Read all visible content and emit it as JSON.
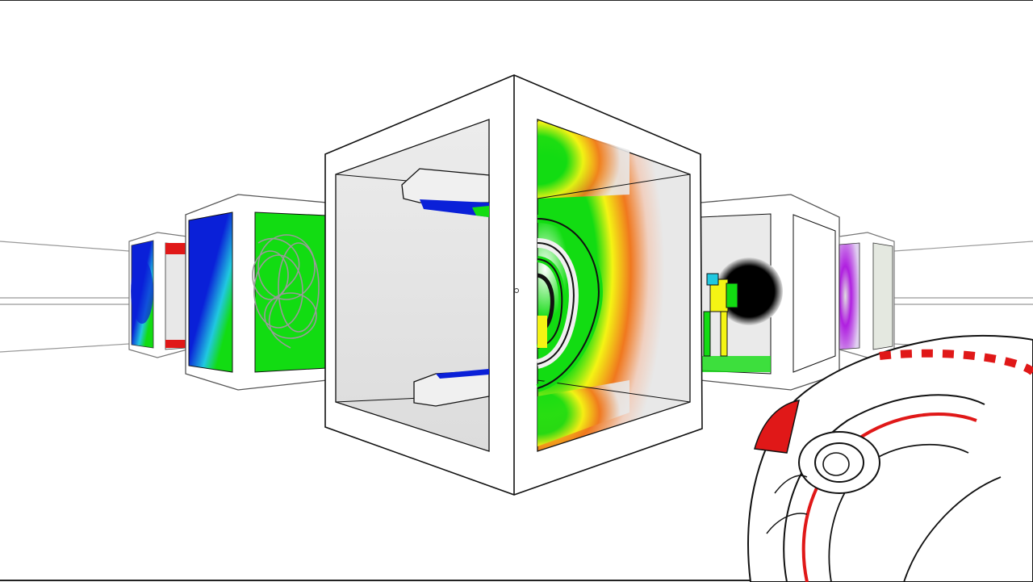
{
  "scene": {
    "type": "first-person-3d-view",
    "style": "white outline render with color-mapped panels",
    "palette": {
      "background": "#ffffff",
      "outline": "#111111",
      "panel_gray": "#e4e4e4",
      "blue": "#0a20d8",
      "green": "#12dc12",
      "yellow": "#f4f414",
      "orange": "#f0781e",
      "red": "#e01818",
      "purple": "#b020e0",
      "cyan": "#20c8e0"
    },
    "objects": [
      "corridor-rails",
      "far-left-cube",
      "mid-left-cube",
      "center-cube",
      "mid-right-cube",
      "far-right-cube",
      "held-device"
    ],
    "icons": [
      "crosshair-icon"
    ]
  }
}
